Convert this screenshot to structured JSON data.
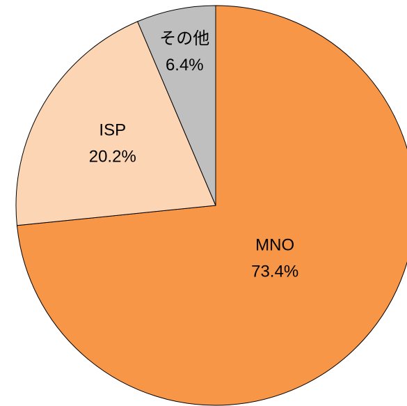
{
  "chart_data": {
    "type": "pie",
    "categories": [
      "MNO",
      "ISP",
      "その他"
    ],
    "values": [
      73.4,
      20.2,
      6.4
    ],
    "value_labels": [
      "73.4%",
      "20.2%",
      "6.4%"
    ],
    "colors": [
      "#f79646",
      "#fcd5b5",
      "#bfbfbf"
    ]
  }
}
